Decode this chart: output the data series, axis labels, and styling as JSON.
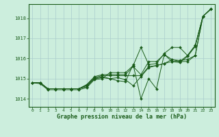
{
  "title": "Graphe pression niveau de la mer (hPa)",
  "background_color": "#cceedd",
  "grid_color": "#aacccc",
  "line_color": "#1a5c1a",
  "x_ticks": [
    0,
    1,
    2,
    3,
    4,
    5,
    6,
    7,
    8,
    9,
    10,
    11,
    12,
    13,
    14,
    15,
    16,
    17,
    18,
    19,
    20,
    21,
    22,
    23
  ],
  "ylim": [
    1013.6,
    1018.7
  ],
  "yticks": [
    1014,
    1015,
    1016,
    1017,
    1018
  ],
  "series": [
    [
      1014.8,
      1014.8,
      1014.5,
      1014.5,
      1014.5,
      1014.5,
      1014.5,
      1014.6,
      1015.0,
      1015.05,
      1015.0,
      1014.9,
      1014.85,
      1015.7,
      1014.0,
      1015.0,
      1014.5,
      1016.2,
      1015.85,
      1015.8,
      1016.1,
      1016.6,
      1018.1,
      1018.45
    ],
    [
      1014.8,
      1014.8,
      1014.5,
      1014.5,
      1014.5,
      1014.5,
      1014.5,
      1014.65,
      1015.0,
      1015.1,
      1015.0,
      1015.05,
      1014.95,
      1014.65,
      1015.1,
      1015.55,
      1015.65,
      1015.75,
      1015.85,
      1015.85,
      1015.85,
      1016.15,
      1018.1,
      1018.45
    ],
    [
      1014.8,
      1014.8,
      1014.5,
      1014.5,
      1014.5,
      1014.5,
      1014.5,
      1014.7,
      1015.05,
      1015.15,
      1015.15,
      1015.15,
      1015.15,
      1015.15,
      1015.15,
      1015.6,
      1015.65,
      1015.75,
      1015.95,
      1015.9,
      1015.95,
      1016.15,
      1018.1,
      1018.45
    ],
    [
      1014.8,
      1014.8,
      1014.5,
      1014.5,
      1014.5,
      1014.5,
      1014.5,
      1014.7,
      1015.1,
      1015.2,
      1015.2,
      1015.2,
      1015.2,
      1015.6,
      1015.2,
      1015.85,
      1015.85,
      1016.2,
      1015.95,
      1015.85,
      1016.15,
      1016.65,
      1018.1,
      1018.45
    ],
    [
      1014.8,
      1014.75,
      1014.45,
      1014.45,
      1014.45,
      1014.45,
      1014.45,
      1014.55,
      1014.95,
      1015.0,
      1015.3,
      1015.3,
      1015.3,
      1015.65,
      1016.55,
      1015.7,
      1015.75,
      1016.25,
      1016.55,
      1016.55,
      1016.15,
      1016.65,
      1018.1,
      1018.45
    ]
  ]
}
